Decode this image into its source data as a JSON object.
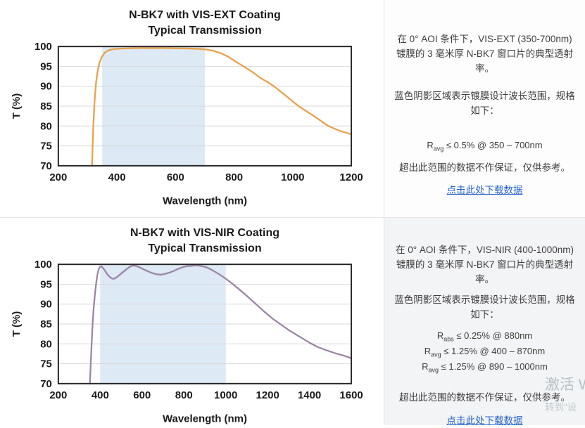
{
  "page": {
    "watermark_line1": "激活 W",
    "watermark_line2": "转到“设",
    "divider_color": "#e4e4e4"
  },
  "chart_data": [
    {
      "type": "line",
      "title": "N-BK7 with VIS-EXT Coating",
      "subtitle": "Typical Transmission",
      "xlabel": "Wavelength (nm)",
      "ylabel": "T (%)",
      "xlim": [
        200,
        1200
      ],
      "ylim": [
        70,
        100
      ],
      "xticks": [
        200,
        400,
        600,
        800,
        1000,
        1200
      ],
      "yticks": [
        70,
        75,
        80,
        85,
        90,
        95,
        100
      ],
      "grid": true,
      "legend": "none",
      "design_band_nm": [
        350,
        700
      ],
      "band_color": "#dde9f4",
      "line_color": "#e9a24b",
      "series": [
        {
          "name": "Typical Transmission",
          "points": [
            [
              310,
              55
            ],
            [
              313,
              64
            ],
            [
              315,
              70
            ],
            [
              317,
              75
            ],
            [
              319,
              79
            ],
            [
              322,
              84
            ],
            [
              325,
              87.5
            ],
            [
              329,
              91
            ],
            [
              334,
              93.8
            ],
            [
              340,
              95.8
            ],
            [
              348,
              97.3
            ],
            [
              358,
              98.4
            ],
            [
              370,
              99.0
            ],
            [
              385,
              99.3
            ],
            [
              405,
              99.45
            ],
            [
              440,
              99.55
            ],
            [
              480,
              99.6
            ],
            [
              520,
              99.6
            ],
            [
              560,
              99.6
            ],
            [
              600,
              99.55
            ],
            [
              640,
              99.5
            ],
            [
              680,
              99.4
            ],
            [
              705,
              99.25
            ],
            [
              730,
              98.9
            ],
            [
              755,
              98.3
            ],
            [
              780,
              97.4
            ],
            [
              805,
              96.2
            ],
            [
              832,
              95.0
            ],
            [
              860,
              93.7
            ],
            [
              890,
              92.1
            ],
            [
              915,
              91.0
            ],
            [
              936,
              90.0
            ],
            [
              975,
              87.7
            ],
            [
              1020,
              85.0
            ],
            [
              1070,
              82.6
            ],
            [
              1121,
              80.0
            ],
            [
              1160,
              78.8
            ],
            [
              1200,
              77.9
            ]
          ]
        }
      ]
    },
    {
      "type": "line",
      "title": "N-BK7 with VIS-NIR Coating",
      "subtitle": "Typical Transmission",
      "xlabel": "Wavelength (nm)",
      "ylabel": "T (%)",
      "xlim": [
        200,
        1600
      ],
      "ylim": [
        70,
        100
      ],
      "xticks": [
        200,
        400,
        600,
        800,
        1000,
        1200,
        1400,
        1600
      ],
      "yticks": [
        70,
        75,
        80,
        85,
        90,
        95,
        100
      ],
      "grid": true,
      "legend": "none",
      "design_band_nm": [
        400,
        1000
      ],
      "band_color": "#dde9f4",
      "line_color": "#9b86a5",
      "series": [
        {
          "name": "Typical Transmission",
          "points": [
            [
              338,
              55
            ],
            [
              344,
              62
            ],
            [
              349,
              68
            ],
            [
              354,
              74
            ],
            [
              359,
              80
            ],
            [
              364,
              85
            ],
            [
              369,
              89
            ],
            [
              375,
              92.5
            ],
            [
              381,
              95.3
            ],
            [
              387,
              97.5
            ],
            [
              393,
              98.8
            ],
            [
              399,
              99.4
            ],
            [
              405,
              99.5
            ],
            [
              412,
              99.2
            ],
            [
              422,
              98.5
            ],
            [
              434,
              97.5
            ],
            [
              446,
              96.8
            ],
            [
              458,
              96.4
            ],
            [
              468,
              96.4
            ],
            [
              480,
              96.8
            ],
            [
              494,
              97.4
            ],
            [
              510,
              98.1
            ],
            [
              526,
              98.8
            ],
            [
              542,
              99.4
            ],
            [
              556,
              99.7
            ],
            [
              572,
              99.6
            ],
            [
              590,
              99.2
            ],
            [
              610,
              98.7
            ],
            [
              630,
              98.2
            ],
            [
              650,
              97.8
            ],
            [
              670,
              97.5
            ],
            [
              690,
              97.4
            ],
            [
              710,
              97.6
            ],
            [
              730,
              97.9
            ],
            [
              750,
              98.3
            ],
            [
              770,
              98.8
            ],
            [
              790,
              99.2
            ],
            [
              810,
              99.5
            ],
            [
              830,
              99.6
            ],
            [
              850,
              99.7
            ],
            [
              870,
              99.7
            ],
            [
              890,
              99.5
            ],
            [
              910,
              99.2
            ],
            [
              930,
              98.7
            ],
            [
              950,
              98.1
            ],
            [
              975,
              97.3
            ],
            [
              1000,
              96.4
            ],
            [
              1030,
              95.2
            ],
            [
              1060,
              93.9
            ],
            [
              1100,
              92.1
            ],
            [
              1140,
              90.2
            ],
            [
              1180,
              88.3
            ],
            [
              1220,
              86.5
            ],
            [
              1260,
              85.0
            ],
            [
              1300,
              83.5
            ],
            [
              1350,
              81.9
            ],
            [
              1400,
              80.3
            ],
            [
              1440,
              79.2
            ],
            [
              1480,
              78.4
            ],
            [
              1520,
              77.7
            ],
            [
              1560,
              77.1
            ],
            [
              1600,
              76.4
            ]
          ]
        }
      ]
    }
  ],
  "panels": [
    {
      "description": "在 0° AOI 条件下，VIS-EXT (350-700nm) 镀膜的 3 毫米厚 N-BK7 窗口片的典型透射率。",
      "shading_note": "蓝色阴影区域表示镀膜设计波长范围，规格如下：",
      "specs": [
        {
          "symbol": "R",
          "sub": "avg",
          "condition": "≤ 0.5% @ 350 – 700nm"
        }
      ],
      "disclaimer": "超出此范围的数据不作保证，仅供参考。",
      "download_link": "点击此处下载数据",
      "link_color": "#2563c8"
    },
    {
      "description": "在 0° AOI 条件下，VIS-NIR (400-1000nm) 镀膜的 3 毫米厚 N-BK7 窗口片的典型透射率。",
      "shading_note": "蓝色阴影区域表示镀膜设计波长范围，规格如下：",
      "specs": [
        {
          "symbol": "R",
          "sub": "abs",
          "condition": "≤ 0.25% @ 880nm"
        },
        {
          "symbol": "R",
          "sub": "avg",
          "condition": "≤ 1.25% @ 400 – 870nm"
        },
        {
          "symbol": "R",
          "sub": "avg",
          "condition": "≤ 1.25% @ 890 – 1000nm"
        }
      ],
      "disclaimer": "超出此范围的数据不作保证，仅供参考。",
      "download_link": "点击此处下载数据",
      "link_color": "#2563c8"
    }
  ]
}
